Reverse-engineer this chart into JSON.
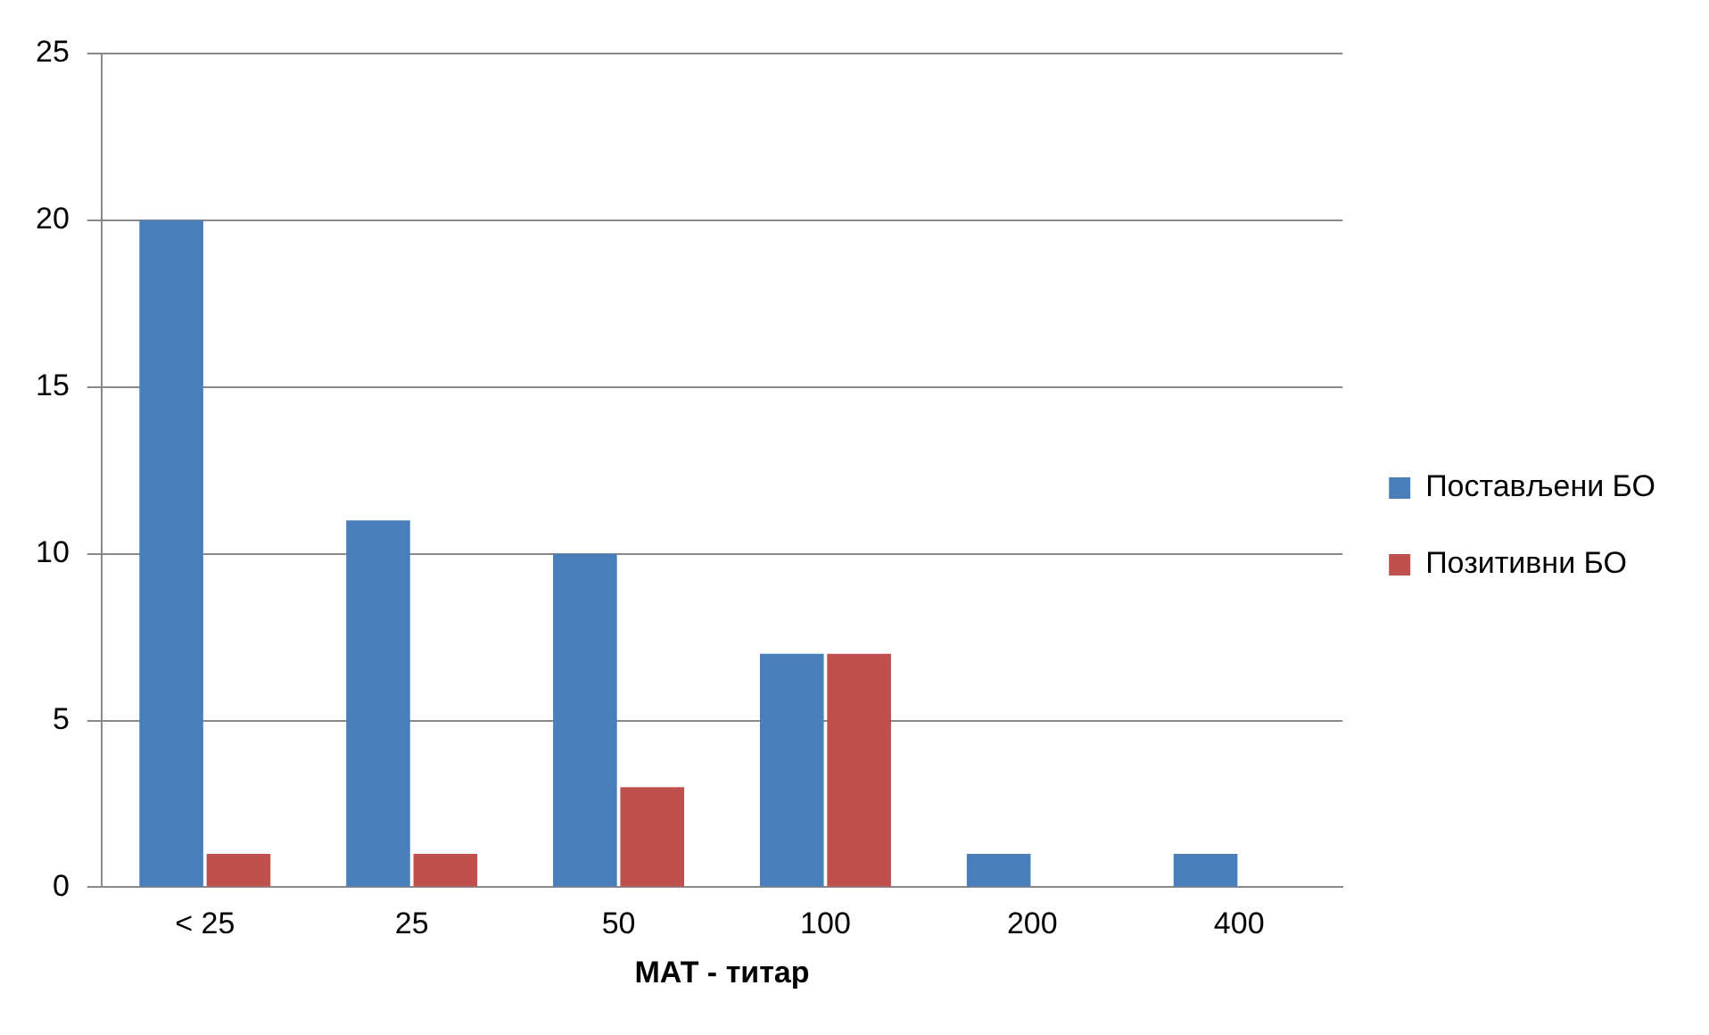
{
  "chart_data": {
    "type": "bar",
    "xlabel": "МАТ - титар",
    "categories": [
      "< 25",
      "25",
      "50",
      "100",
      "200",
      "400"
    ],
    "series": [
      {
        "name": "Постављени БО",
        "color": "#4a7ebb",
        "values": [
          20,
          11,
          10,
          7,
          1,
          1
        ]
      },
      {
        "name": "Позитивни БО",
        "color": "#c0504d",
        "values": [
          1,
          1,
          3,
          7,
          null,
          null
        ]
      }
    ],
    "ylim": [
      0,
      25
    ],
    "yticks": [
      0,
      5,
      10,
      15,
      20,
      25
    ],
    "grid": "y",
    "legend": "right"
  }
}
